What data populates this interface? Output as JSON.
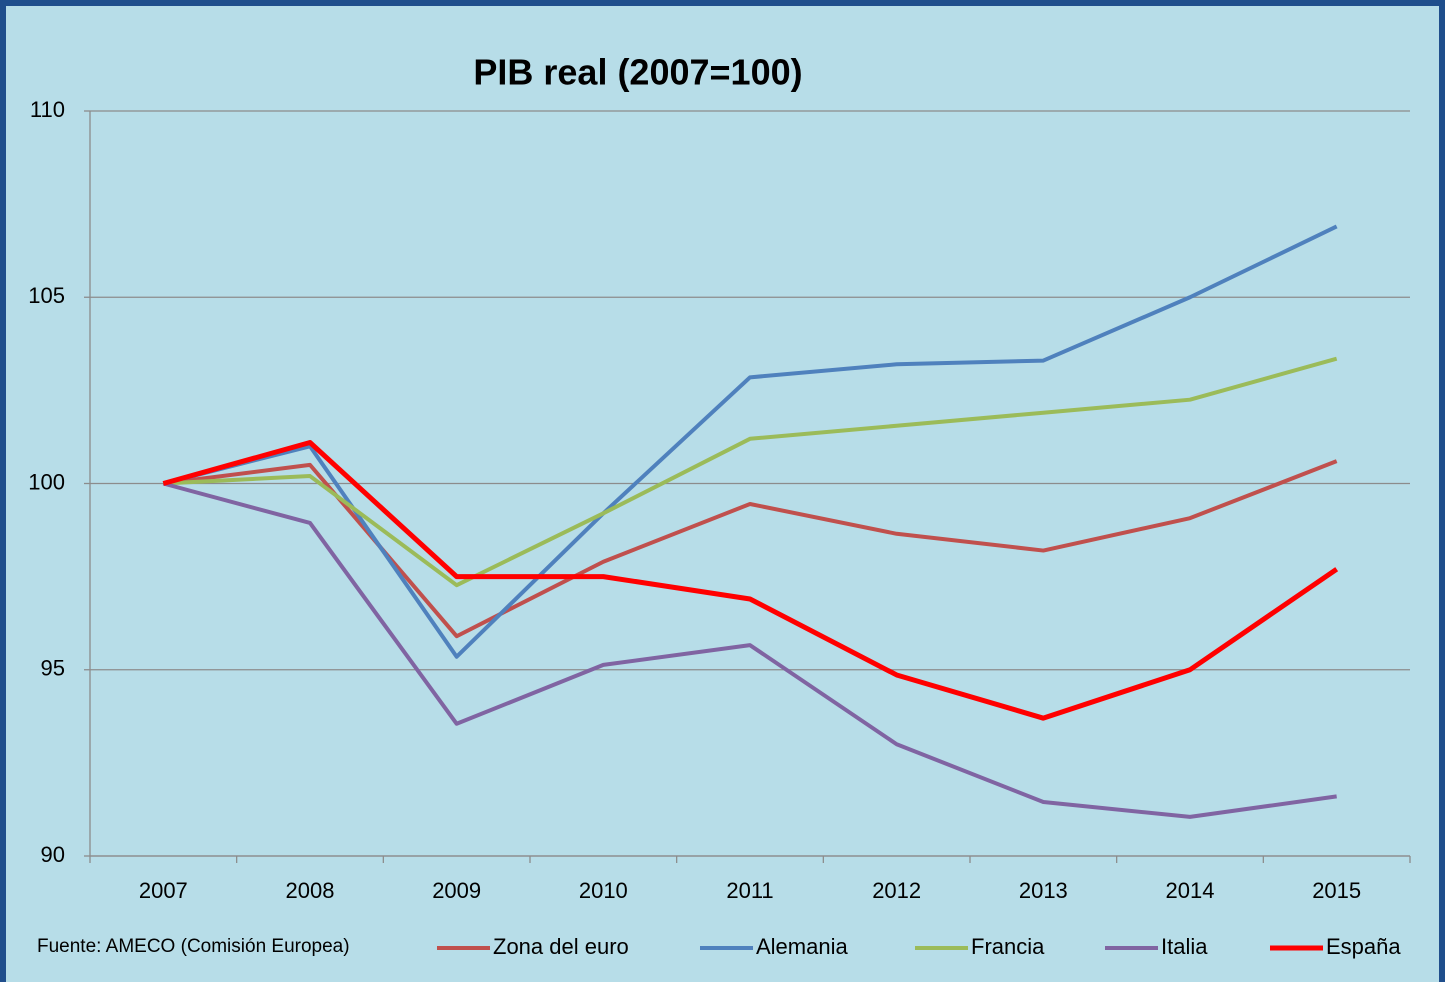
{
  "chart_data": {
    "type": "line",
    "title": "PIB real (2007=100)",
    "source": "Fuente: AMECO (Comisión Europea)",
    "categories": [
      "2007",
      "2008",
      "2009",
      "2010",
      "2011",
      "2012",
      "2013",
      "2014",
      "2015"
    ],
    "series": [
      {
        "name": "Zona del euro",
        "color": "#c0504d",
        "values": [
          100,
          100.5,
          95.9,
          97.9,
          99.45,
          98.65,
          98.2,
          99.07,
          100.6
        ]
      },
      {
        "name": "Alemania",
        "color": "#4f81bd",
        "values": [
          100,
          101.0,
          95.35,
          99.2,
          102.85,
          103.2,
          103.3,
          105.0,
          106.9
        ]
      },
      {
        "name": "Francia",
        "color": "#9bbb59",
        "values": [
          100,
          100.2,
          97.27,
          99.2,
          101.2,
          101.55,
          101.9,
          102.25,
          103.35
        ]
      },
      {
        "name": "Italia",
        "color": "#8064a2",
        "values": [
          100,
          98.94,
          93.55,
          95.13,
          95.66,
          93.0,
          91.45,
          91.05,
          91.6
        ]
      },
      {
        "name": "España",
        "color": "#ff0000",
        "values": [
          100,
          101.1,
          97.5,
          97.5,
          96.9,
          94.86,
          93.7,
          95.0,
          97.7
        ]
      }
    ],
    "ylim": [
      90,
      110
    ],
    "yticks": [
      90,
      95,
      100,
      105,
      110
    ],
    "grid": true
  }
}
